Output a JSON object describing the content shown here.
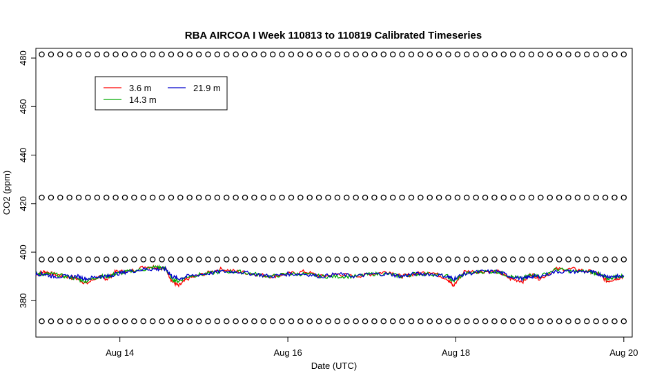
{
  "chart_data": {
    "type": "line",
    "title": "RBA AIRCOA I  Week 110813 to 110819  Calibrated Timeseries",
    "xlabel": "Date (UTC)",
    "ylabel": "CO2 (ppm)",
    "x_unit": "days since Aug 13 00:00 UTC",
    "xlim": [
      0,
      7.1
    ],
    "ylim": [
      365,
      484
    ],
    "x_ticks": [
      {
        "x": 1,
        "label": "Aug 14"
      },
      {
        "x": 3,
        "label": "Aug 16"
      },
      {
        "x": 5,
        "label": "Aug 18"
      },
      {
        "x": 7,
        "label": "Aug 20"
      }
    ],
    "y_ticks": [
      {
        "y": 380,
        "label": "380"
      },
      {
        "y": 400,
        "label": "400"
      },
      {
        "y": 420,
        "label": "420"
      },
      {
        "y": 440,
        "label": "440"
      },
      {
        "y": 460,
        "label": "460"
      },
      {
        "y": 480,
        "label": "480"
      }
    ],
    "grid": false,
    "legend": {
      "position": "top-left",
      "entries": [
        {
          "name": "3.6 m",
          "color": "#ff0000"
        },
        {
          "name": "14.3 m",
          "color": "#00aa00"
        },
        {
          "name": "21.9 m",
          "color": "#0000cc"
        }
      ]
    },
    "series": [
      {
        "name": "3.6 m",
        "color": "#ff0000",
        "x": [
          0,
          0.1,
          0.2,
          0.35,
          0.5,
          0.6,
          0.75,
          0.85,
          0.95,
          1.1,
          1.3,
          1.45,
          1.55,
          1.62,
          1.7,
          1.8,
          2.0,
          2.2,
          2.4,
          2.6,
          2.8,
          3.0,
          3.2,
          3.4,
          3.6,
          3.8,
          4.0,
          4.2,
          4.35,
          4.5,
          4.7,
          4.9,
          4.97,
          5.1,
          5.3,
          5.5,
          5.65,
          5.8,
          5.9,
          6.0,
          6.2,
          6.4,
          6.6,
          6.7,
          6.8,
          6.9,
          7.0
        ],
        "y": [
          391,
          392,
          391,
          390,
          389,
          387,
          390,
          389,
          392,
          392,
          394,
          394,
          393,
          388,
          386,
          389,
          391,
          393,
          392,
          391,
          390,
          391,
          392,
          390,
          391,
          390,
          391,
          392,
          390,
          391,
          392,
          389,
          386,
          392,
          392,
          392,
          389,
          388,
          391,
          389,
          393,
          393,
          392,
          391,
          388,
          389,
          390
        ]
      },
      {
        "name": "14.3 m",
        "color": "#00aa00",
        "x": [
          0,
          0.1,
          0.2,
          0.35,
          0.5,
          0.6,
          0.75,
          0.85,
          0.95,
          1.1,
          1.3,
          1.45,
          1.55,
          1.62,
          1.7,
          1.8,
          2.0,
          2.2,
          2.4,
          2.6,
          2.8,
          3.0,
          3.2,
          3.4,
          3.6,
          3.8,
          4.0,
          4.2,
          4.35,
          4.5,
          4.7,
          4.9,
          4.97,
          5.1,
          5.3,
          5.5,
          5.65,
          5.8,
          5.9,
          6.0,
          6.2,
          6.4,
          6.6,
          6.7,
          6.8,
          6.9,
          7.0
        ],
        "y": [
          391,
          391,
          391,
          390,
          389,
          388,
          390,
          390,
          391,
          392,
          393,
          394,
          393,
          389,
          388,
          390,
          391,
          392,
          392,
          391,
          390,
          391,
          391,
          390,
          390,
          390,
          391,
          391,
          390,
          391,
          391,
          390,
          388,
          391,
          392,
          392,
          390,
          389,
          391,
          390,
          393,
          392,
          392,
          391,
          389,
          390,
          390
        ]
      },
      {
        "name": "21.9 m",
        "color": "#0000cc",
        "x": [
          0,
          0.1,
          0.2,
          0.35,
          0.5,
          0.6,
          0.75,
          0.85,
          0.95,
          1.1,
          1.3,
          1.45,
          1.55,
          1.62,
          1.7,
          1.8,
          2.0,
          2.2,
          2.4,
          2.6,
          2.8,
          3.0,
          3.2,
          3.4,
          3.6,
          3.8,
          4.0,
          4.2,
          4.35,
          4.5,
          4.7,
          4.9,
          4.97,
          5.1,
          5.3,
          5.5,
          5.65,
          5.8,
          5.9,
          6.0,
          6.2,
          6.4,
          6.6,
          6.7,
          6.8,
          6.9,
          7.0
        ],
        "y": [
          391,
          391,
          390,
          390,
          390,
          389,
          390,
          390,
          391,
          392,
          393,
          393,
          393,
          390,
          389,
          390,
          391,
          392,
          392,
          391,
          390,
          391,
          391,
          390,
          391,
          390,
          391,
          391,
          390,
          391,
          391,
          390,
          389,
          391,
          392,
          392,
          390,
          389,
          390,
          390,
          392,
          392,
          392,
          391,
          390,
          390,
          390
        ]
      },
      {
        "name": "",
        "marker": "o",
        "color": "#000000",
        "calibration_levels_ppm": [
          371.5,
          397,
          422.5,
          481.5
        ],
        "x_range": [
          0.07,
          7.0
        ],
        "note_spacing_days": 0.11
      }
    ]
  }
}
